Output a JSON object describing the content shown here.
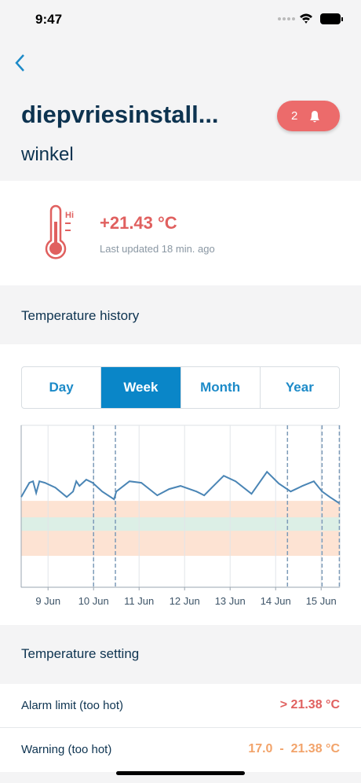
{
  "status_bar": {
    "time": "9:47"
  },
  "header": {
    "title": "diepvriesinstall...",
    "subtitle": "winkel",
    "alert_count": 2
  },
  "current": {
    "icon_label": "Hi",
    "temperature": "+21.43 °C",
    "updated": "Last updated 18 min. ago"
  },
  "history": {
    "heading": "Temperature history",
    "tabs": [
      "Day",
      "Week",
      "Month",
      "Year"
    ],
    "active_tab": 1
  },
  "chart_data": {
    "type": "line",
    "xlim": [
      8.41,
      15.41
    ],
    "ylim": [
      14.5,
      27.4
    ],
    "xticks": [
      {
        "value": 9,
        "label": "9 Jun"
      },
      {
        "value": 10,
        "label": "10 Jun"
      },
      {
        "value": 11,
        "label": "11 Jun"
      },
      {
        "value": 12,
        "label": "12 Jun"
      },
      {
        "value": 13,
        "label": "13 Jun"
      },
      {
        "value": 14,
        "label": "14 Jun"
      },
      {
        "value": 15,
        "label": "15 Jun"
      }
    ],
    "grid": true,
    "bands": [
      {
        "from": 17.0,
        "to": 21.38,
        "color": "#fde3d3"
      },
      {
        "from": 19.0,
        "to": 20.07,
        "color": "#dcefe6"
      }
    ],
    "event_lines": [
      10.0,
      10.48,
      14.26,
      15.02,
      15.4
    ],
    "series": [
      {
        "color": "#4a85b5",
        "x": [
          8.41,
          8.59,
          8.67,
          8.74,
          8.81,
          8.93,
          9.16,
          9.41,
          9.55,
          9.62,
          9.69,
          9.84,
          9.98,
          10.19,
          10.45,
          10.5,
          10.57,
          10.79,
          11.05,
          11.4,
          11.66,
          11.91,
          12.26,
          12.43,
          12.6,
          12.86,
          13.12,
          13.47,
          13.81,
          14.07,
          14.33,
          14.59,
          14.84,
          15.02,
          15.19,
          15.4
        ],
        "values": [
          21.69,
          22.82,
          22.94,
          22.01,
          22.94,
          22.82,
          22.44,
          21.69,
          22.13,
          22.94,
          22.57,
          23.07,
          22.82,
          22.13,
          21.51,
          22.13,
          22.32,
          22.94,
          22.82,
          21.82,
          22.32,
          22.57,
          22.13,
          21.82,
          22.44,
          23.38,
          22.94,
          21.94,
          23.69,
          22.76,
          22.13,
          22.57,
          22.94,
          22.13,
          21.69,
          21.19
        ]
      }
    ]
  },
  "settings": {
    "heading": "Temperature setting",
    "rows": [
      {
        "label": "Alarm limit (too hot)",
        "value": "> 21.38 °C"
      },
      {
        "label": "Warning (too hot)",
        "value": "17.0  -  21.38 °C"
      }
    ]
  }
}
